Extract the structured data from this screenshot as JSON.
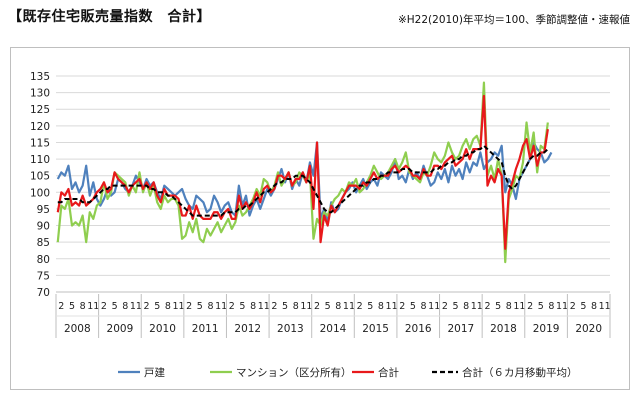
{
  "title": "【既存住宅販売量指数　合計】",
  "note": "※H22(2010)年平均＝100、季節調整値・速報値",
  "chart_data": {
    "type": "line",
    "title": "【既存住宅販売量指数　合計】",
    "ylim": [
      70,
      135
    ],
    "yticks": [
      70,
      75,
      80,
      85,
      90,
      95,
      100,
      105,
      110,
      115,
      120,
      125,
      130,
      135
    ],
    "grid": true,
    "legend_position": "bottom",
    "month_tick_labels": [
      "2",
      "5",
      "8",
      "11",
      "2"
    ],
    "years": [
      "2008",
      "2009",
      "2010",
      "2011",
      "2012",
      "2013",
      "2014",
      "2015",
      "2016",
      "2017",
      "2018",
      "2019",
      "2020"
    ],
    "x_start": "2008-01",
    "x_end": "2020-12",
    "series": [
      {
        "name": "戸建",
        "color": "#4f81bd",
        "dash": false,
        "values": [
          104,
          106,
          105,
          108,
          101,
          103,
          100,
          102,
          108,
          99,
          103,
          98,
          96,
          98,
          101,
          99,
          100,
          104,
          103,
          101,
          100,
          102,
          105,
          103,
          101,
          104,
          102,
          103,
          100,
          98,
          102,
          101,
          100,
          99,
          100,
          101,
          98,
          96,
          95,
          99,
          98,
          97,
          94,
          95,
          99,
          97,
          94,
          96,
          97,
          94,
          93,
          102,
          96,
          99,
          93,
          96,
          98,
          95,
          98,
          101,
          99,
          101,
          104,
          107,
          103,
          106,
          101,
          104,
          102,
          106,
          103,
          109,
          105,
          115,
          92,
          95,
          91,
          97,
          94,
          95,
          98,
          100,
          101,
          103,
          100,
          102,
          104,
          101,
          103,
          104,
          102,
          106,
          105,
          104,
          106,
          110,
          104,
          105,
          103,
          107,
          104,
          106,
          104,
          108,
          105,
          102,
          103,
          106,
          104,
          107,
          103,
          108,
          105,
          107,
          104,
          109,
          106,
          109,
          108,
          112,
          107,
          109,
          110,
          112,
          111,
          114,
          100,
          104,
          102,
          98,
          104,
          106,
          108,
          110,
          115,
          113,
          112,
          109,
          110,
          112
        ]
      },
      {
        "name": "マンション（区分所有）",
        "color": "#8fce4f",
        "dash": false,
        "values": [
          85,
          96,
          95,
          98,
          90,
          91,
          90,
          93,
          85,
          94,
          92,
          96,
          97,
          103,
          98,
          100,
          106,
          105,
          104,
          103,
          99,
          102,
          100,
          106,
          100,
          103,
          99,
          102,
          97,
          95,
          99,
          97,
          98,
          98,
          96,
          86,
          87,
          91,
          88,
          92,
          86,
          85,
          89,
          87,
          89,
          91,
          88,
          90,
          92,
          89,
          91,
          96,
          93,
          94,
          96,
          98,
          101,
          99,
          104,
          103,
          100,
          102,
          106,
          102,
          104,
          106,
          102,
          103,
          106,
          105,
          103,
          106,
          86,
          92,
          90,
          94,
          93,
          96,
          98,
          99,
          101,
          100,
          103,
          102,
          104,
          100,
          101,
          103,
          105,
          108,
          106,
          104,
          105,
          106,
          108,
          110,
          107,
          109,
          112,
          106,
          105,
          104,
          103,
          106,
          105,
          108,
          112,
          110,
          109,
          111,
          115,
          112,
          110,
          111,
          114,
          116,
          113,
          116,
          117,
          114,
          133,
          105,
          108,
          104,
          110,
          105,
          79,
          98,
          101,
          105,
          104,
          109,
          121,
          112,
          118,
          106,
          114,
          113,
          121
        ]
      },
      {
        "name": "合計",
        "color": "#e8191b",
        "dash": false,
        "values": [
          94,
          100,
          99,
          101,
          96,
          97,
          96,
          99,
          96,
          97,
          98,
          100,
          101,
          103,
          100,
          101,
          106,
          104,
          103,
          102,
          100,
          102,
          103,
          104,
          101,
          103,
          101,
          103,
          99,
          97,
          101,
          99,
          99,
          99,
          98,
          93,
          93,
          96,
          92,
          96,
          93,
          92,
          92,
          92,
          94,
          94,
          92,
          94,
          95,
          92,
          92,
          99,
          95,
          97,
          95,
          97,
          100,
          97,
          101,
          102,
          100,
          101,
          105,
          105,
          104,
          106,
          102,
          104,
          104,
          106,
          103,
          108,
          95,
          115,
          85,
          93,
          90,
          96,
          94,
          96,
          98,
          100,
          102,
          102,
          102,
          101,
          103,
          102,
          104,
          106,
          104,
          105,
          105,
          105,
          107,
          108,
          106,
          107,
          108,
          107,
          105,
          105,
          104,
          107,
          105,
          105,
          108,
          108,
          107,
          109,
          110,
          111,
          108,
          109,
          110,
          113,
          110,
          113,
          113,
          113,
          129,
          102,
          105,
          103,
          107,
          105,
          83,
          100,
          103,
          107,
          110,
          114,
          116,
          110,
          114,
          108,
          112,
          112,
          119
        ]
      },
      {
        "name": "合計（６カ月移動平均）",
        "color": "#000000",
        "dash": true,
        "values": [
          97,
          97,
          98,
          98,
          98,
          98,
          98,
          97,
          97,
          97,
          98,
          99,
          100,
          101,
          101,
          102,
          102,
          102,
          102,
          102,
          102,
          102,
          102,
          102,
          102,
          102,
          101,
          101,
          100,
          100,
          100,
          99,
          99,
          98,
          97,
          96,
          95,
          94,
          93,
          93,
          93,
          93,
          93,
          93,
          93,
          93,
          93,
          94,
          94,
          94,
          94,
          95,
          95,
          96,
          96,
          97,
          98,
          99,
          100,
          100,
          101,
          102,
          103,
          103,
          104,
          104,
          104,
          105,
          105,
          105,
          104,
          103,
          101,
          99,
          97,
          95,
          94,
          94,
          95,
          96,
          97,
          98,
          99,
          100,
          101,
          102,
          102,
          103,
          103,
          104,
          104,
          105,
          105,
          106,
          106,
          106,
          106,
          107,
          107,
          107,
          106,
          106,
          106,
          106,
          106,
          106,
          107,
          107,
          108,
          108,
          109,
          109,
          110,
          110,
          111,
          111,
          112,
          112,
          113,
          113,
          114,
          113,
          112,
          111,
          110,
          109,
          105,
          102,
          101,
          102,
          104,
          106,
          108,
          110,
          111,
          111,
          112,
          112,
          113
        ]
      }
    ]
  }
}
